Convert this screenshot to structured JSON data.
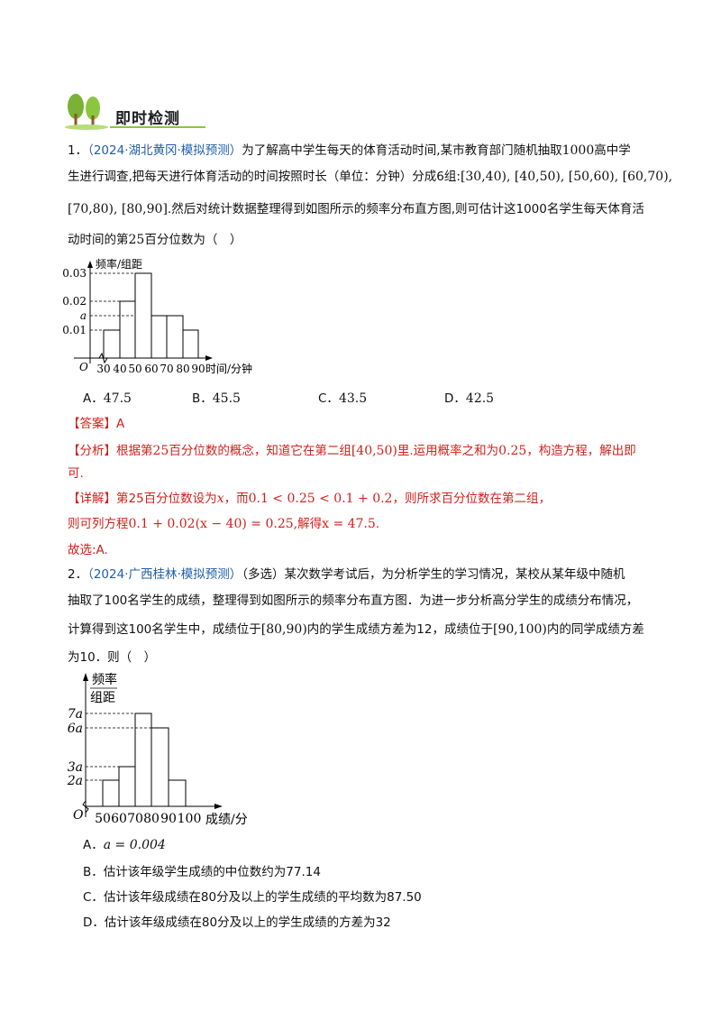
{
  "banner": {
    "title": "即时检测",
    "icon": "tree-icon"
  },
  "q1": {
    "num": "1．",
    "source": "（2024·湖北黄冈·模拟预测）",
    "line1_a": "为了解高中学生每天的体育活动时间,某市教育部门随机抽取",
    "line1_b": "1000",
    "line1_c": "高中学",
    "line2_a": "生进行调查,把每天进行体育活动的时间按照时长（单位：分钟）分成6组:",
    "line2_intervals": "[30,40), [40,50), [50,60), [60,70),",
    "line3_intervals": "[70,80), [80,90]",
    "line3_text": ".然后对统计数据整理得到如图所示的频率分布直方图,则可估计这1000名学生每天体育活",
    "line4_a": "动时间的第",
    "line4_b": "25",
    "line4_c": "百分位数为（　）",
    "chart": {
      "ylabel": "频率/组距",
      "xlabel": "时间/分钟",
      "origin": "O",
      "yticks": [
        "0.03",
        "0.02",
        "a",
        "0.01"
      ],
      "xticks": [
        "30",
        "40",
        "50",
        "60",
        "70",
        "80",
        "90"
      ]
    },
    "options": [
      {
        "label": "A．",
        "value": "47.5"
      },
      {
        "label": "B．",
        "value": "45.5"
      },
      {
        "label": "C．",
        "value": "43.5"
      },
      {
        "label": "D．",
        "value": "42.5"
      }
    ],
    "answer_label": "【答案】",
    "answer": "A",
    "analysis_label": "【分析】",
    "analysis_1a": "根据第",
    "analysis_1b": "25",
    "analysis_1c": "百分位数的概念，知道它在第二组",
    "analysis_1d": "[40,50)",
    "analysis_1e": "里.运用概率之和为",
    "analysis_1f": "0.25",
    "analysis_1g": "，构造方程，解出即",
    "analysis_2": "可.",
    "detail_label": "【详解】",
    "detail_1a": "第25百分位数设为",
    "detail_1b": "x",
    "detail_1c": "，而",
    "detail_1d": "0.1 < 0.25 < 0.1 + 0.2",
    "detail_1e": "，则所求百分位数在第二组，",
    "detail_2a": "则可列方程",
    "detail_2b": "0.1 + 0.02(x − 40) = 0.25,",
    "detail_2c": "解得",
    "detail_2d": "x = 47.5",
    "detail_2e": ".",
    "choose": "故选:A."
  },
  "q2": {
    "num": "2．",
    "source": "（2024·广西桂林·模拟预测）",
    "line1": "（多选）某次数学考试后，为分析学生的学习情况，某校从某年级中随机",
    "line2": "抽取了100名学生的成绩，整理得到如图所示的频率分布直方图．为进一步分析高分学生的成绩分布情况，",
    "line3_a": "计算得到这100名学生中，成绩位于",
    "line3_b": "[80,90)",
    "line3_c": "内的学生成绩方差为12，成绩位于",
    "line3_d": "[90,100)",
    "line3_e": "内的同学成绩方差",
    "line4": "为10．则（　）",
    "chart": {
      "ylabel_top": "频率",
      "ylabel_bottom": "组距",
      "xlabel": "成绩/分",
      "origin": "O",
      "yticks": [
        "7a",
        "6a",
        "3a",
        "2a"
      ],
      "xticks": [
        "50",
        "60",
        "70",
        "80",
        "90",
        "100"
      ]
    },
    "options": [
      {
        "label": "A．",
        "value": "a = 0.004"
      },
      {
        "label": "B．",
        "value": "估计该年级学生成绩的中位数约为77.14"
      },
      {
        "label": "C．",
        "value": "估计该年级成绩在80分及以上的学生成绩的平均数为87.50"
      },
      {
        "label": "D．",
        "value": "估计该年级成绩在80分及以上的学生成绩的方差为32"
      }
    ]
  },
  "colors": {
    "accent_red": "#d0211c",
    "source_blue": "#1f5fa8",
    "leaf_green": "#7bb135",
    "trunk_brown": "#8a5a2b"
  }
}
